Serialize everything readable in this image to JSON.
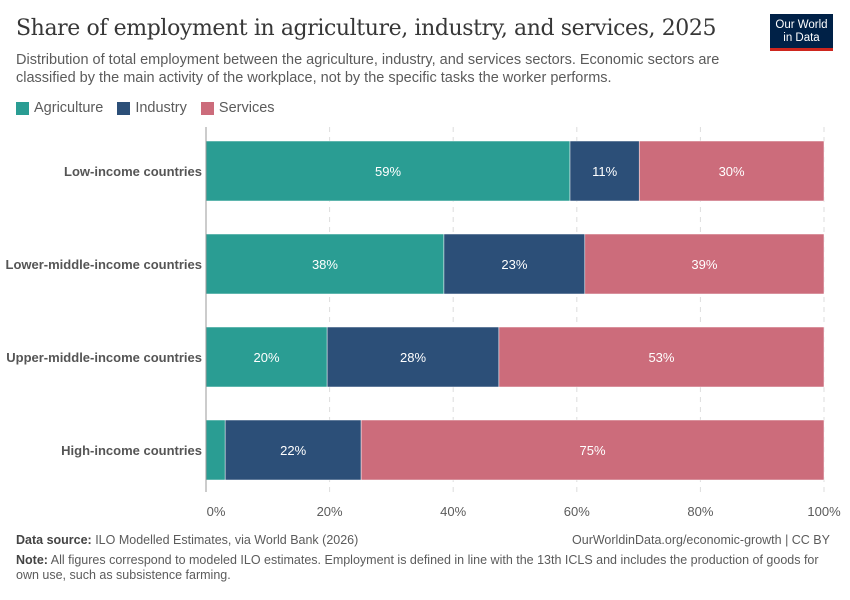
{
  "title": "Share of employment in agriculture, industry, and services, 2025",
  "subtitle": "Distribution of total employment between the agriculture, industry, and services sectors. Economic sectors are classified by the main activity of the workplace, not by the specific tasks the worker performs.",
  "logo": "Our World in Data",
  "colors": {
    "Agriculture": "#2a9d93",
    "Industry": "#2c4f78",
    "Services": "#cc6c7b"
  },
  "chart_data": {
    "type": "bar",
    "orientation": "horizontal",
    "stacked": true,
    "categories": [
      "Low-income countries",
      "Lower-middle-income countries",
      "Upper-middle-income countries",
      "High-income countries"
    ],
    "series": [
      {
        "name": "Agriculture",
        "values": [
          58.9,
          38.5,
          19.6,
          3.1
        ],
        "labels": [
          "59%",
          "38%",
          "20%",
          ""
        ]
      },
      {
        "name": "Industry",
        "values": [
          11.2,
          22.8,
          27.8,
          22.0
        ],
        "labels": [
          "11%",
          "23%",
          "28%",
          "22%"
        ]
      },
      {
        "name": "Services",
        "values": [
          29.9,
          38.7,
          52.6,
          74.9
        ],
        "labels": [
          "30%",
          "39%",
          "53%",
          "75%"
        ]
      }
    ],
    "xlim": [
      0,
      100
    ],
    "xticks": [
      "0%",
      "20%",
      "40%",
      "60%",
      "80%",
      "100%"
    ],
    "grid": true,
    "legend": "top-left"
  },
  "footer": {
    "source_label": "Data source:",
    "source": " ILO Modelled Estimates, via World Bank (2026)",
    "url": "OurWorldinData.org/economic-growth | CC BY",
    "note_label": "Note:",
    "note": " All figures correspond to modeled ILO estimates. Employment is defined in line with the 13th ICLS and includes the production of goods for own use, such as subsistence farming."
  }
}
